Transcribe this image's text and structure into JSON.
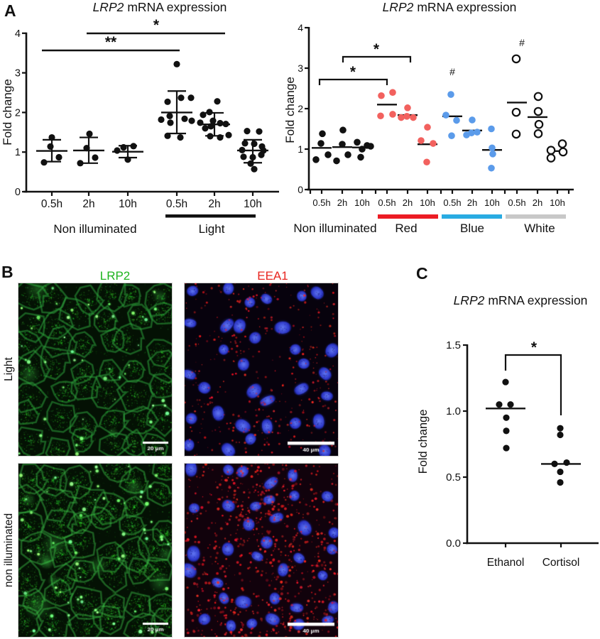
{
  "panels": {
    "a": "A",
    "b": "B",
    "c": "C"
  },
  "chart_data": [
    {
      "id": "lrp2-light-timecourse",
      "type": "scatter",
      "title_italic": "LRP2",
      "title_rest": "mRNA expression",
      "ylabel": "Fold change",
      "ylim": [
        0,
        4
      ],
      "yticks": [
        "4",
        "3",
        "2",
        "1",
        "0"
      ],
      "point_color": "#111111",
      "sections": [
        {
          "label": "Non illuminated",
          "point_color": "#111111"
        },
        {
          "label": "Light",
          "point_color": "#111111",
          "bar_color": "#111111"
        }
      ],
      "groups": [
        {
          "label": "0.5h",
          "sec": 0,
          "values": [
            1.37,
            1.14,
            0.87,
            0.74
          ],
          "dx": [
            0,
            -2,
            10,
            -11
          ],
          "mean": 1.03,
          "err": [
            0.76,
            1.31
          ]
        },
        {
          "label": "2h",
          "sec": 0,
          "values": [
            1.46,
            1.1,
            0.86,
            0.72
          ],
          "dx": [
            1,
            -3,
            9,
            -12
          ],
          "mean": 1.04,
          "err": [
            0.72,
            1.37
          ]
        },
        {
          "label": "10h",
          "sec": 0,
          "values": [
            1.15,
            1.12,
            1.04,
            0.81
          ],
          "dx": [
            8,
            -6,
            -15,
            0
          ],
          "mean": 1.01,
          "err": [
            0.86,
            1.16
          ]
        },
        {
          "label": "0.5h",
          "sec": 1,
          "values": [
            3.22,
            2.37,
            2.37,
            2.27,
            1.91,
            1.84,
            1.82,
            1.79,
            1.74,
            1.41,
            1.37
          ],
          "dx": [
            0,
            6,
            20,
            -13,
            -10,
            11,
            -22,
            21,
            -9,
            -13,
            5
          ],
          "mean": 2.0,
          "err": [
            1.47,
            2.54
          ]
        },
        {
          "label": "2h",
          "sec": 1,
          "values": [
            2.28,
            2.01,
            1.94,
            1.79,
            1.74,
            1.73,
            1.71,
            1.65,
            1.6,
            1.43,
            1.4,
            1.37
          ],
          "dx": [
            4,
            -7,
            -16,
            -2,
            -20,
            8,
            16,
            -5,
            -13,
            20,
            -6,
            8
          ],
          "mean": 1.7,
          "err": [
            1.41,
            1.99
          ]
        },
        {
          "label": "10h",
          "sec": 1,
          "values": [
            1.53,
            1.52,
            1.22,
            1.21,
            1.14,
            1.05,
            1.04,
            0.93,
            0.88,
            0.87,
            0.71,
            0.57
          ],
          "dx": [
            -8,
            9,
            -11,
            2,
            13,
            -15,
            15,
            12,
            -13,
            0,
            -3,
            2
          ],
          "mean": 1.04,
          "err": [
            0.73,
            1.31
          ]
        }
      ],
      "sig": [
        {
          "label": "**",
          "from": 0,
          "to": 3
        },
        {
          "label": "*",
          "from": 1,
          "to": 4
        }
      ]
    },
    {
      "id": "lrp2-color-timecourse",
      "type": "scatter",
      "title_italic": "LRP2",
      "title_rest": "mRNA expression",
      "ylabel": "Fold change",
      "ylim": [
        0,
        4
      ],
      "yticks": [
        "4",
        "3",
        "2",
        "1",
        "0"
      ],
      "sections": [
        {
          "label": "Non illuminated",
          "point_color": "#111111"
        },
        {
          "label": "Red",
          "point_color": "#f2615e",
          "bar_color": "#ec1c24"
        },
        {
          "label": "Blue",
          "point_color": "#5b9bea",
          "bar_color": "#29abe2"
        },
        {
          "label": "White",
          "point_color": "open",
          "bar_color": "#c8c8c8"
        }
      ],
      "groups": [
        {
          "label": "0.5h",
          "sec": 0,
          "values": [
            1.38,
            1.14,
            0.86,
            0.74
          ],
          "dx": [
            1,
            -1,
            9,
            -8
          ],
          "mean": 1.03
        },
        {
          "label": "2h",
          "sec": 0,
          "values": [
            1.47,
            1.12,
            0.86,
            0.71
          ],
          "dx": [
            1,
            0,
            8,
            -8
          ],
          "mean": 1.05
        },
        {
          "label": "10h",
          "sec": 0,
          "values": [
            1.17,
            1.09,
            1.07,
            1.0,
            0.8
          ],
          "dx": [
            -7,
            7,
            12,
            0,
            -2
          ],
          "mean": 1.04
        },
        {
          "label": "0.5h",
          "sec": 1,
          "values": [
            2.4,
            2.32,
            1.86,
            1.82
          ],
          "dx": [
            8,
            -8,
            8,
            -9
          ],
          "mean": 2.1
        },
        {
          "label": "2h",
          "sec": 1,
          "values": [
            2.02,
            1.81,
            1.78,
            1.78
          ],
          "dx": [
            0,
            -1,
            -9,
            8
          ],
          "mean": 1.84
        },
        {
          "label": "10h",
          "sec": 1,
          "values": [
            1.54,
            1.21,
            1.14,
            0.68
          ],
          "dx": [
            0,
            -9,
            8,
            -1
          ],
          "mean": 1.12
        },
        {
          "label": "0.5h",
          "sec": 2,
          "values": [
            2.35,
            1.84,
            1.71,
            1.33
          ],
          "dx": [
            -2,
            -9,
            6,
            -1
          ],
          "mean": 1.81
        },
        {
          "label": "2h",
          "sec": 2,
          "values": [
            1.72,
            1.42,
            1.4,
            1.35
          ],
          "dx": [
            0,
            7,
            -1,
            -8
          ],
          "mean": 1.46
        },
        {
          "label": "10h",
          "sec": 2,
          "values": [
            1.5,
            1.03,
            0.88,
            0.53
          ],
          "dx": [
            -1,
            0,
            1,
            -1
          ],
          "mean": 0.98
        },
        {
          "label": "0.5h",
          "sec": 3,
          "values": [
            3.23,
            1.91,
            1.37
          ],
          "dx": [
            -1,
            -1,
            -1
          ],
          "mean": 2.15
        },
        {
          "label": "2h",
          "sec": 3,
          "values": [
            2.3,
            1.93,
            1.61,
            1.38
          ],
          "dx": [
            1,
            1,
            2,
            1
          ],
          "mean": 1.79
        },
        {
          "label": "10h",
          "sec": 3,
          "values": [
            1.13,
            0.97,
            0.93,
            0.78
          ],
          "dx": [
            7,
            -9,
            8,
            -9
          ],
          "mean": 0.95
        }
      ],
      "sig": [
        {
          "label": "*",
          "from": 0,
          "to": 3
        },
        {
          "label": "*",
          "from": 1,
          "to": 4
        }
      ],
      "hashes": [
        {
          "label": "#",
          "group": 6
        },
        {
          "label": "#",
          "group": 9
        }
      ]
    },
    {
      "id": "lrp2-cortisol",
      "type": "scatter",
      "title_italic": "LRP2",
      "title_rest": "mRNA expression",
      "ylabel": "Fold change",
      "ylim": [
        0,
        1.5
      ],
      "yticks": [
        "1.5",
        "1.0",
        "0.5",
        "0.0"
      ],
      "sections": [
        {
          "label": "",
          "point_color": "#111111"
        }
      ],
      "groups": [
        {
          "label": "Ethanol",
          "sec": 0,
          "values": [
            1.22,
            1.05,
            1.05,
            0.95,
            0.85,
            0.72
          ],
          "dx": [
            0,
            -9,
            7,
            1,
            1,
            1
          ],
          "mean": 1.02
        },
        {
          "label": "Cortisol",
          "sec": 0,
          "values": [
            0.87,
            0.82,
            0.61,
            0.6,
            0.54,
            0.46
          ],
          "dx": [
            -1,
            -1,
            8,
            -9,
            -1,
            -1
          ],
          "mean": 0.6
        }
      ],
      "sig": [
        {
          "label": "*",
          "from": 0,
          "to": 1
        }
      ]
    }
  ],
  "panelB": {
    "channels": [
      {
        "label": "LRP2",
        "color": "#1db31d"
      },
      {
        "label": "EEA1",
        "color": "#e8251f"
      }
    ],
    "rows": [
      {
        "label": "Light"
      },
      {
        "label": "non illuminated"
      }
    ],
    "scalebars": {
      "lrp2": "20 μm",
      "eea1": "40 μm"
    },
    "stain_colors": {
      "lrp2_signal": "#35e035",
      "eea1_signal": "#ff2020",
      "nuclei": "#2b3fd6"
    }
  }
}
